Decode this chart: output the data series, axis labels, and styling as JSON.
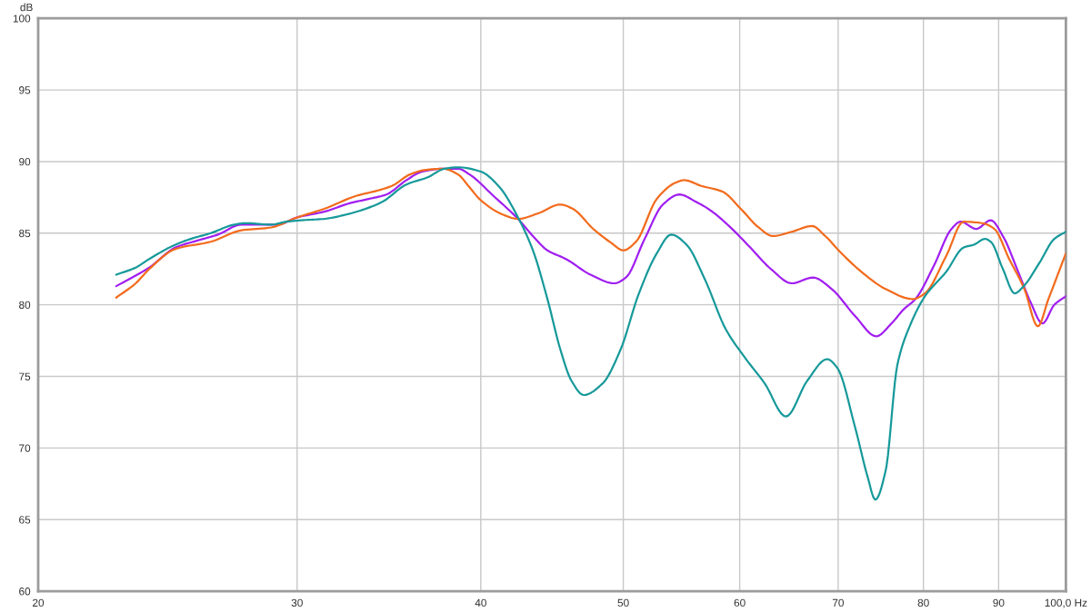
{
  "chart_data": {
    "type": "line",
    "ylabel": "dB",
    "log": "x",
    "xlim": [
      20,
      100
    ],
    "xticks": [
      20,
      30,
      40,
      50,
      60,
      70,
      80,
      90,
      {
        "value": 100,
        "label": "100,0 Hz"
      }
    ],
    "ylim": [
      60,
      100
    ],
    "yticks": [
      60,
      65,
      70,
      75,
      80,
      85,
      90,
      95,
      100
    ],
    "grid": true,
    "line_style": "solid",
    "series": [
      {
        "color": "#a11ef0",
        "x": [
          22.6,
          23.8,
          24.8,
          25.7,
          26.5,
          27.5,
          28.3,
          29.1,
          30.0,
          31.3,
          32.6,
          33.6,
          34.5,
          35.6,
          36.5,
          37.8,
          38.6,
          39.3,
          40.8,
          42.4,
          43.4,
          44.4,
          45.7,
          47.5,
          49.3,
          50.2,
          51.7,
          53.2,
          54.6,
          56.0,
          57.3,
          59.0,
          61.0,
          63.0,
          65.1,
          67.3,
          69.3,
          71.9,
          74.3,
          76.1,
          77.6,
          79.0,
          81.3,
          83.6,
          84.8,
          86.9,
          88.9,
          90.6,
          92.8,
          94.6,
          96.4,
          98.2,
          100
        ],
        "values": [
          81.3,
          82.6,
          84.0,
          84.5,
          84.9,
          85.6,
          85.6,
          85.6,
          86.1,
          86.5,
          87.1,
          87.4,
          87.7,
          88.7,
          89.3,
          89.5,
          89.5,
          89.1,
          87.6,
          86.0,
          84.8,
          83.8,
          83.2,
          82.1,
          81.5,
          81.9,
          84.6,
          87.0,
          87.7,
          87.2,
          86.6,
          85.5,
          84.0,
          82.5,
          81.5,
          81.9,
          81.1,
          79.2,
          77.8,
          78.7,
          79.7,
          80.4,
          82.7,
          85.3,
          85.8,
          85.3,
          85.9,
          84.8,
          82.3,
          80.2,
          78.7,
          80.0,
          80.6
        ]
      },
      {
        "color": "#f26b1d",
        "x": [
          22.6,
          23.3,
          23.8,
          24.8,
          26.2,
          27.5,
          28.8,
          30.0,
          31.3,
          32.9,
          34.1,
          34.8,
          35.8,
          36.6,
          37.7,
          38.6,
          39.3,
          40.0,
          41.4,
          42.4,
          43.8,
          45.3,
          46.2,
          47.7,
          49.1,
          50.0,
          51.0,
          52.7,
          54.2,
          55.0,
          56.5,
          58.4,
          60.1,
          61.8,
          63.2,
          65.1,
          67.2,
          68.6,
          70.2,
          72.6,
          75.4,
          78.7,
          80.2,
          82.9,
          85.2,
          87.7,
          89.4,
          91.5,
          93.7,
          95.7,
          97.3,
          100
        ],
        "values": [
          80.5,
          81.5,
          82.5,
          83.9,
          84.4,
          85.2,
          85.4,
          86.1,
          86.7,
          87.6,
          88.0,
          88.3,
          89.1,
          89.4,
          89.5,
          89.1,
          88.2,
          87.3,
          86.3,
          86.0,
          86.4,
          87.0,
          86.7,
          85.3,
          84.3,
          83.8,
          84.4,
          87.4,
          88.5,
          88.7,
          88.3,
          87.9,
          86.7,
          85.4,
          84.8,
          85.1,
          85.5,
          84.8,
          83.7,
          82.3,
          81.1,
          80.4,
          80.8,
          83.4,
          85.8,
          85.7,
          85.3,
          83.2,
          81.1,
          78.5,
          80.4,
          83.6
        ]
      },
      {
        "color": "#17999a",
        "x": [
          22.6,
          23.3,
          23.8,
          24.8,
          25.4,
          26.2,
          27.2,
          27.7,
          28.8,
          29.5,
          30.2,
          31.3,
          32.4,
          33.6,
          34.3,
          35.6,
          36.8,
          37.8,
          38.6,
          40.0,
          41.2,
          42.4,
          43.4,
          44.4,
          45.3,
          46.1,
          47.0,
          48.4,
          49.8,
          51.2,
          52.7,
          53.9,
          55.2,
          56.8,
          58.7,
          60.4,
          62.4,
          64.5,
          66.7,
          68.8,
          69.9,
          71.9,
          73.3,
          74.2,
          75.4,
          76.8,
          78.3,
          80.2,
          82.9,
          85.2,
          86.6,
          88.1,
          88.9,
          90.6,
          92.3,
          93.6,
          95.9,
          98.2,
          100
        ],
        "values": [
          82.1,
          82.6,
          83.2,
          84.2,
          84.6,
          85.0,
          85.6,
          85.7,
          85.6,
          85.8,
          85.9,
          86.0,
          86.3,
          86.8,
          87.2,
          88.4,
          88.9,
          89.5,
          89.6,
          89.3,
          88.2,
          86.1,
          83.8,
          80.4,
          76.9,
          74.7,
          73.7,
          74.5,
          76.9,
          80.7,
          83.6,
          84.9,
          84.2,
          81.8,
          78.3,
          76.4,
          74.5,
          72.2,
          74.7,
          76.2,
          75.6,
          71.4,
          68.0,
          66.4,
          68.4,
          75.8,
          78.5,
          80.6,
          82.3,
          84.0,
          84.2,
          84.6,
          84.4,
          82.5,
          80.8,
          81.3,
          82.9,
          84.6,
          85.1
        ]
      }
    ]
  }
}
